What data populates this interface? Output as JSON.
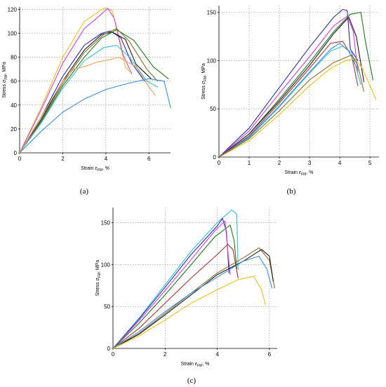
{
  "chart_data": [
    {
      "type": "line",
      "panel_label": "(a)",
      "xlabel": "Strain εFM, %",
      "ylabel": "Stress σFM, MPa",
      "xlim": [
        0,
        7
      ],
      "ylim": [
        0,
        122
      ],
      "xticks": [
        0,
        2,
        4,
        6
      ],
      "yticks": [
        0,
        20,
        40,
        60,
        80,
        100,
        120
      ],
      "grid": true,
      "series": [
        {
          "color": "#e8c21a",
          "points": [
            [
              0,
              0
            ],
            [
              1,
              38
            ],
            [
              2,
              80
            ],
            [
              3,
              110
            ],
            [
              3.9,
              121
            ],
            [
              4.3,
              119
            ],
            [
              4.6,
              95
            ],
            [
              4.9,
              72
            ],
            [
              5.1,
              68
            ]
          ]
        },
        {
          "color": "#d63fd6",
          "points": [
            [
              0,
              0
            ],
            [
              1,
              36
            ],
            [
              2,
              75
            ],
            [
              3,
              104
            ],
            [
              3.6,
              113
            ],
            [
              4.1,
              121
            ],
            [
              4.4,
              112
            ],
            [
              4.8,
              82
            ],
            [
              5.2,
              66
            ]
          ]
        },
        {
          "color": "#2a2ab8",
          "points": [
            [
              0,
              0
            ],
            [
              1,
              30
            ],
            [
              2,
              64
            ],
            [
              3,
              90
            ],
            [
              3.8,
              100
            ],
            [
              4.2,
              102
            ],
            [
              4.7,
              96
            ],
            [
              5.2,
              75
            ],
            [
              5.8,
              60
            ]
          ]
        },
        {
          "color": "#1a1a1a",
          "points": [
            [
              0,
              0
            ],
            [
              1,
              28
            ],
            [
              2,
              60
            ],
            [
              3,
              86
            ],
            [
              3.8,
              99
            ],
            [
              4.3,
              101
            ],
            [
              4.9,
              95
            ],
            [
              5.4,
              74
            ],
            [
              6.1,
              62
            ]
          ]
        },
        {
          "color": "#1a7a1a",
          "points": [
            [
              0,
              0
            ],
            [
              1,
              26
            ],
            [
              2,
              56
            ],
            [
              3,
              80
            ],
            [
              3.8,
              96
            ],
            [
              4.5,
              103
            ],
            [
              5.3,
              94
            ],
            [
              6.2,
              72
            ],
            [
              6.9,
              62
            ]
          ]
        },
        {
          "color": "#8c6a2c",
          "points": [
            [
              0,
              0
            ],
            [
              1,
              27
            ],
            [
              2,
              58
            ],
            [
              3,
              84
            ],
            [
              3.9,
              99
            ],
            [
              4.5,
              104
            ],
            [
              5.1,
              93
            ],
            [
              5.9,
              70
            ],
            [
              6.4,
              60
            ]
          ]
        },
        {
          "color": "#2fbfd9",
          "points": [
            [
              0,
              0
            ],
            [
              1,
              25
            ],
            [
              2,
              54
            ],
            [
              3,
              77
            ],
            [
              3.9,
              88
            ],
            [
              4.5,
              90
            ],
            [
              5.1,
              80
            ],
            [
              5.9,
              60
            ],
            [
              6.4,
              55
            ]
          ]
        },
        {
          "color": "#3a8fd9",
          "points": [
            [
              0,
              0
            ],
            [
              1,
              18
            ],
            [
              2,
              34
            ],
            [
              3,
              45
            ],
            [
              4,
              53
            ],
            [
              5,
              58
            ],
            [
              6,
              62
            ],
            [
              6.7,
              60
            ],
            [
              7,
              38
            ]
          ]
        },
        {
          "color": "#f0a050",
          "points": [
            [
              0,
              0
            ],
            [
              1,
              30
            ],
            [
              2,
              60
            ],
            [
              2.5,
              70
            ],
            [
              3,
              72
            ],
            [
              3.6,
              76
            ],
            [
              4.2,
              78
            ],
            [
              4.6,
              80
            ],
            [
              5.4,
              72
            ],
            [
              6,
              55
            ],
            [
              6.3,
              48
            ]
          ]
        }
      ]
    },
    {
      "type": "line",
      "panel_label": "(b)",
      "xlabel": "Strain εFM, %",
      "ylabel": "Stress σFM, MPa",
      "xlim": [
        0,
        5.3
      ],
      "ylim": [
        0,
        157
      ],
      "xticks": [
        0,
        1,
        2,
        3,
        4,
        5
      ],
      "yticks": [
        0,
        50,
        100,
        150
      ],
      "grid": true,
      "series": [
        {
          "color": "#2a2ab8",
          "points": [
            [
              0,
              0
            ],
            [
              1,
              30
            ],
            [
              2,
              72
            ],
            [
              3,
              114
            ],
            [
              3.8,
              145
            ],
            [
              4.1,
              153
            ],
            [
              4.25,
              152
            ],
            [
              4.35,
              112
            ],
            [
              4.6,
              100
            ]
          ]
        },
        {
          "color": "#1a7a1a",
          "points": [
            [
              0,
              0
            ],
            [
              1,
              24
            ],
            [
              2,
              60
            ],
            [
              3,
              98
            ],
            [
              3.8,
              130
            ],
            [
              4.35,
              148
            ],
            [
              4.7,
              150
            ],
            [
              4.85,
              120
            ],
            [
              5.1,
              80
            ]
          ]
        },
        {
          "color": "#d63fd6",
          "points": [
            [
              0,
              0
            ],
            [
              1,
              27
            ],
            [
              2,
              66
            ],
            [
              3,
              104
            ],
            [
              3.8,
              136
            ],
            [
              4.25,
              146
            ],
            [
              4.45,
              130
            ],
            [
              4.6,
              88
            ]
          ]
        },
        {
          "color": "#1a1a1a",
          "points": [
            [
              0,
              0
            ],
            [
              1,
              24
            ],
            [
              2,
              58
            ],
            [
              3,
              95
            ],
            [
              3.8,
              128
            ],
            [
              4.3,
              145
            ],
            [
              4.55,
              125
            ],
            [
              4.8,
              78
            ]
          ]
        },
        {
          "color": "#b03030",
          "points": [
            [
              0,
              0
            ],
            [
              1,
              22
            ],
            [
              2,
              56
            ],
            [
              3,
              92
            ],
            [
              3.7,
              118
            ],
            [
              4.1,
              120
            ],
            [
              4.4,
              104
            ],
            [
              4.6,
              74
            ]
          ]
        },
        {
          "color": "#2fbfd9",
          "points": [
            [
              0,
              0
            ],
            [
              1,
              20
            ],
            [
              2,
              52
            ],
            [
              3,
              87
            ],
            [
              3.7,
              110
            ],
            [
              4.1,
              115
            ],
            [
              4.4,
              108
            ],
            [
              4.7,
              75
            ]
          ]
        },
        {
          "color": "#3a8fd9",
          "points": [
            [
              0,
              0
            ],
            [
              1,
              21
            ],
            [
              2,
              53
            ],
            [
              3,
              88
            ],
            [
              3.7,
              112
            ],
            [
              4.0,
              118
            ],
            [
              4.3,
              110
            ],
            [
              4.6,
              90
            ]
          ]
        },
        {
          "color": "#e8c21a",
          "points": [
            [
              0,
              0
            ],
            [
              1,
              17
            ],
            [
              2,
              44
            ],
            [
              3,
              74
            ],
            [
              3.7,
              92
            ],
            [
              4.2,
              100
            ],
            [
              4.5,
              102
            ],
            [
              4.75,
              92
            ],
            [
              5.2,
              60
            ]
          ]
        },
        {
          "color": "#8c6a2c",
          "points": [
            [
              0,
              0
            ],
            [
              1,
              19
            ],
            [
              2,
              48
            ],
            [
              3,
              80
            ],
            [
              3.8,
              98
            ],
            [
              4.4,
              106
            ],
            [
              4.6,
              95
            ],
            [
              4.8,
              68
            ]
          ]
        }
      ]
    },
    {
      "type": "line",
      "panel_label": "(c)",
      "xlabel": "Strain εFM, %",
      "ylabel": "Stress σFM, MPa",
      "xlim": [
        0,
        6.3
      ],
      "ylim": [
        0,
        168
      ],
      "xticks": [
        0,
        2,
        4,
        6
      ],
      "yticks": [
        0,
        50,
        100,
        150
      ],
      "grid": true,
      "series": [
        {
          "color": "#2fbfd9",
          "points": [
            [
              0,
              0
            ],
            [
              1,
              36
            ],
            [
              2,
              76
            ],
            [
              3,
              116
            ],
            [
              4,
              150
            ],
            [
              4.55,
              165
            ],
            [
              4.75,
              160
            ],
            [
              4.8,
              94
            ]
          ]
        },
        {
          "color": "#2a2ab8",
          "points": [
            [
              0,
              0
            ],
            [
              1,
              35
            ],
            [
              2,
              73
            ],
            [
              3,
              112
            ],
            [
              4,
              146
            ],
            [
              4.2,
              155
            ],
            [
              4.35,
              140
            ],
            [
              4.45,
              90
            ]
          ]
        },
        {
          "color": "#d63fd6",
          "points": [
            [
              0,
              0
            ],
            [
              1,
              33
            ],
            [
              2,
              69
            ],
            [
              3,
              106
            ],
            [
              3.9,
              140
            ],
            [
              4.3,
              152
            ],
            [
              4.4,
              118
            ],
            [
              4.5,
              88
            ]
          ]
        },
        {
          "color": "#1a7a1a",
          "points": [
            [
              0,
              0
            ],
            [
              1,
              30
            ],
            [
              2,
              64
            ],
            [
              3,
              100
            ],
            [
              3.9,
              133
            ],
            [
              4.5,
              147
            ],
            [
              4.65,
              128
            ],
            [
              4.75,
              95
            ]
          ]
        },
        {
          "color": "#b03030",
          "points": [
            [
              0,
              0
            ],
            [
              1,
              24
            ],
            [
              2,
              54
            ],
            [
              3,
              84
            ],
            [
              4,
              112
            ],
            [
              4.4,
              124
            ],
            [
              4.6,
              118
            ],
            [
              4.8,
              84
            ]
          ]
        },
        {
          "color": "#8c6a2c",
          "points": [
            [
              0,
              0
            ],
            [
              1,
              18
            ],
            [
              2,
              42
            ],
            [
              3,
              66
            ],
            [
              4,
              90
            ],
            [
              5,
              108
            ],
            [
              5.6,
              120
            ],
            [
              6,
              105
            ],
            [
              6.2,
              72
            ]
          ]
        },
        {
          "color": "#1a1a1a",
          "points": [
            [
              0,
              0
            ],
            [
              1,
              17
            ],
            [
              2,
              40
            ],
            [
              3,
              64
            ],
            [
              4,
              88
            ],
            [
              5,
              104
            ],
            [
              5.7,
              118
            ],
            [
              6,
              110
            ],
            [
              6.15,
              80
            ]
          ]
        },
        {
          "color": "#3a8fd9",
          "points": [
            [
              0,
              0
            ],
            [
              1,
              20
            ],
            [
              2,
              44
            ],
            [
              3,
              66
            ],
            [
              4,
              85
            ],
            [
              5,
              104
            ],
            [
              5.6,
              110
            ],
            [
              5.9,
              95
            ],
            [
              6.1,
              72
            ]
          ]
        },
        {
          "color": "#e8c21a",
          "points": [
            [
              0,
              0
            ],
            [
              1,
              15
            ],
            [
              2,
              34
            ],
            [
              3,
              54
            ],
            [
              4,
              70
            ],
            [
              4.8,
              82
            ],
            [
              5.4,
              86
            ],
            [
              5.7,
              70
            ],
            [
              5.85,
              52
            ]
          ]
        }
      ]
    }
  ]
}
